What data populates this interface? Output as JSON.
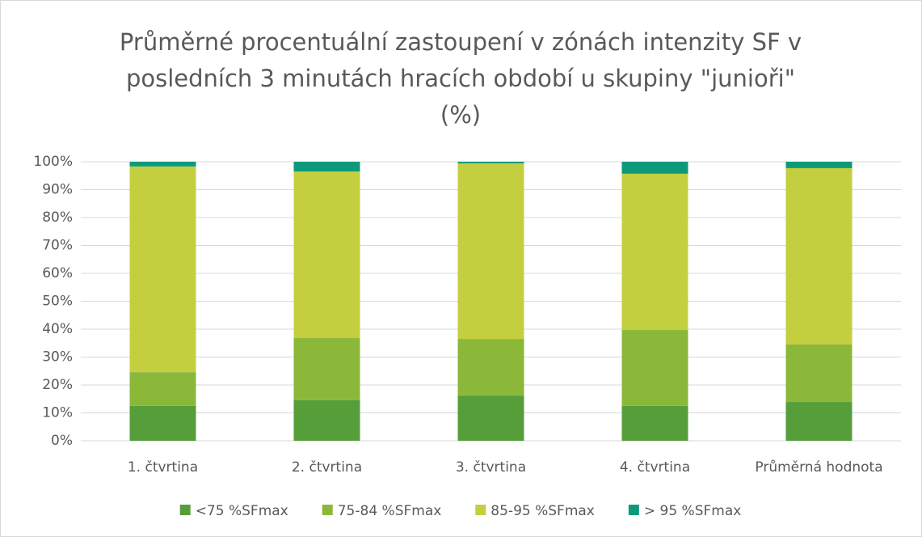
{
  "chart_data": {
    "type": "stacked_bar",
    "title": "Průměrné procentuální zastoupení v zónách intenzity SF v posledních 3 minutách hracích období u skupiny \"junioři\" (%)",
    "categories": [
      "1. čtvrtina",
      "2. čtvrtina",
      "3. čtvrtina",
      "4. čtvrtina",
      "Průměrná hodnota"
    ],
    "series": [
      {
        "name": "<75 %SFmax",
        "color": "#559e3a",
        "values": [
          12.5,
          14.5,
          16.2,
          12.5,
          13.9
        ]
      },
      {
        "name": "75-84 %SFmax",
        "color": "#8cb83a",
        "values": [
          12.1,
          22.3,
          20.3,
          27.2,
          20.6
        ]
      },
      {
        "name": "85-95 %SFmax",
        "color": "#c3cf3f",
        "values": [
          73.7,
          59.7,
          62.9,
          56.0,
          63.2
        ]
      },
      {
        "name": "> 95 %SFmax",
        "color": "#0e9a7a",
        "values": [
          1.7,
          3.5,
          0.6,
          4.3,
          2.3
        ]
      }
    ],
    "ylim": [
      0,
      100
    ],
    "yticks": [
      {
        "value": 0,
        "label": "0%"
      },
      {
        "value": 10,
        "label": "10%"
      },
      {
        "value": 20,
        "label": "20%"
      },
      {
        "value": 30,
        "label": "30%"
      },
      {
        "value": 40,
        "label": "40%"
      },
      {
        "value": 50,
        "label": "50%"
      },
      {
        "value": 60,
        "label": "60%"
      },
      {
        "value": 70,
        "label": "70%"
      },
      {
        "value": 80,
        "label": "80%"
      },
      {
        "value": 90,
        "label": "90%"
      },
      {
        "value": 100,
        "label": "100%"
      }
    ],
    "grid": true,
    "legend": "bottom"
  }
}
